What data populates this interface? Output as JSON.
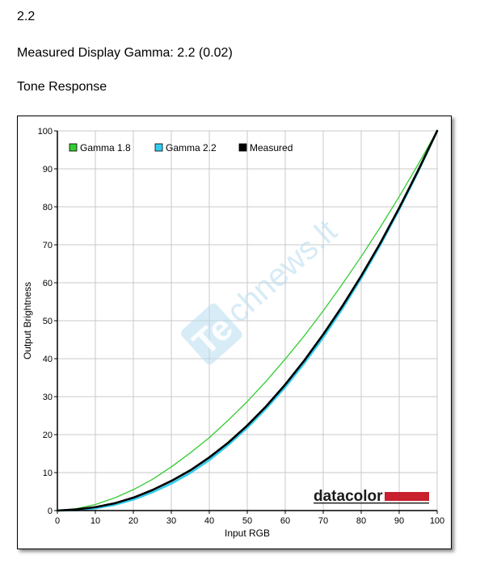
{
  "headings": {
    "version": "2.2",
    "measured": "Measured Display Gamma: 2.2 (0.02)",
    "section": "Tone Response"
  },
  "watermark": {
    "badge": "Te",
    "text": "chnews.lt"
  },
  "brand": {
    "name": "datacolor",
    "accent_color": "#c8202c"
  },
  "chart_data": {
    "type": "line",
    "xlabel": "Input RGB",
    "ylabel": "Output Brightness",
    "xlim": [
      0,
      100
    ],
    "ylim": [
      0,
      100
    ],
    "grid": true,
    "x_ticks": [
      0,
      10,
      20,
      30,
      40,
      50,
      60,
      70,
      80,
      90,
      100
    ],
    "y_ticks": [
      0,
      10,
      20,
      30,
      40,
      50,
      60,
      70,
      80,
      90,
      100
    ],
    "legend_position": "top-left",
    "x": [
      0,
      5,
      10,
      15,
      20,
      25,
      30,
      35,
      40,
      45,
      50,
      55,
      60,
      65,
      70,
      75,
      80,
      85,
      90,
      95,
      100
    ],
    "series": [
      {
        "name": "Gamma 1.8",
        "color": "#33cc33",
        "values": [
          0,
          0.5,
          1.6,
          3.3,
          5.5,
          8.2,
          11.5,
          15.2,
          19.2,
          23.8,
          28.7,
          34.1,
          39.9,
          46.0,
          52.6,
          59.6,
          66.9,
          74.6,
          82.7,
          91.2,
          100
        ]
      },
      {
        "name": "Gamma 2.2",
        "color": "#33ccee",
        "values": [
          0,
          0.1,
          0.6,
          1.5,
          2.9,
          4.8,
          7.1,
          9.9,
          13.3,
          17.3,
          21.8,
          26.9,
          32.5,
          38.8,
          45.6,
          53.1,
          61.2,
          69.9,
          79.3,
          89.3,
          100
        ]
      },
      {
        "name": "Measured",
        "color": "#000000",
        "values": [
          0,
          0.3,
          0.9,
          1.9,
          3.4,
          5.4,
          7.8,
          10.6,
          14.0,
          17.9,
          22.4,
          27.5,
          33.2,
          39.5,
          46.4,
          53.8,
          61.8,
          70.4,
          79.7,
          89.6,
          100
        ]
      }
    ]
  }
}
